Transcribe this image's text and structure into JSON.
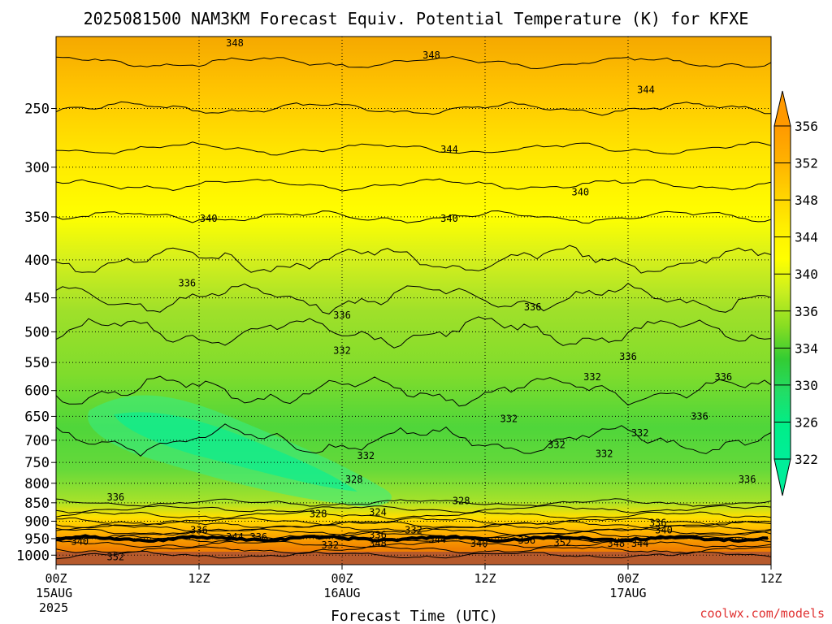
{
  "chart_data": {
    "type": "heatmap",
    "title": "2025081500 NAM3KM Forecast Equiv. Potential Temperature (K) for KFXE",
    "xlabel": "Forecast Time (UTC)",
    "ylabel": "",
    "watermark": "coolwx.com/models",
    "x_ticks": [
      {
        "hour": 0,
        "label": "00Z",
        "date": "15AUG",
        "year": "2025"
      },
      {
        "hour": 12,
        "label": "12Z",
        "date": "",
        "year": ""
      },
      {
        "hour": 24,
        "label": "00Z",
        "date": "16AUG",
        "year": ""
      },
      {
        "hour": 36,
        "label": "12Z",
        "date": "",
        "year": ""
      },
      {
        "hour": 48,
        "label": "00Z",
        "date": "17AUG",
        "year": ""
      },
      {
        "hour": 60,
        "label": "12Z",
        "date": "",
        "year": ""
      }
    ],
    "xlim": [
      0,
      60
    ],
    "y_ticks": [
      250,
      300,
      350,
      400,
      450,
      500,
      550,
      600,
      650,
      700,
      750,
      800,
      850,
      900,
      950,
      1000
    ],
    "ylim": [
      200,
      1030
    ],
    "y_scale": "log-pressure",
    "grid": true,
    "colorbar": {
      "labels": [
        356,
        352,
        348,
        344,
        340,
        336,
        334,
        330,
        326,
        322
      ],
      "colors": [
        "#ff9900",
        "#ffb000",
        "#ffd000",
        "#ffee00",
        "#ffff00",
        "#c8ee20",
        "#88dd22",
        "#33cc33",
        "#22dd66",
        "#00ee88",
        "#00ee99"
      ]
    },
    "profile": [
      {
        "p": 200,
        "theta_e": 349
      },
      {
        "p": 250,
        "theta_e": 346
      },
      {
        "p": 300,
        "theta_e": 343
      },
      {
        "p": 350,
        "theta_e": 340
      },
      {
        "p": 400,
        "theta_e": 338
      },
      {
        "p": 450,
        "theta_e": 336
      },
      {
        "p": 500,
        "theta_e": 334
      },
      {
        "p": 600,
        "theta_e": 332
      },
      {
        "p": 700,
        "theta_e": 330
      },
      {
        "p": 800,
        "theta_e": 328
      },
      {
        "p": 850,
        "theta_e": 330
      },
      {
        "p": 900,
        "theta_e": 336
      },
      {
        "p": 950,
        "theta_e": 346
      },
      {
        "p": 1000,
        "theta_e": 352
      }
    ],
    "contour_labels": [
      {
        "text": "348",
        "hour": 15.0,
        "p": 204
      },
      {
        "text": "348",
        "hour": 31.5,
        "p": 212
      },
      {
        "text": "344",
        "hour": 49.5,
        "p": 236
      },
      {
        "text": "344",
        "hour": 33.0,
        "p": 284
      },
      {
        "text": "340",
        "hour": 44.0,
        "p": 324
      },
      {
        "text": "340",
        "hour": 12.8,
        "p": 352
      },
      {
        "text": "340",
        "hour": 33.0,
        "p": 352
      },
      {
        "text": "336",
        "hour": 11.0,
        "p": 430
      },
      {
        "text": "336",
        "hour": 24.0,
        "p": 475
      },
      {
        "text": "336",
        "hour": 40.0,
        "p": 463
      },
      {
        "text": "332",
        "hour": 24.0,
        "p": 530
      },
      {
        "text": "336",
        "hour": 48.0,
        "p": 540
      },
      {
        "text": "332",
        "hour": 45.0,
        "p": 575
      },
      {
        "text": "336",
        "hour": 56.0,
        "p": 575
      },
      {
        "text": "332",
        "hour": 38.0,
        "p": 655
      },
      {
        "text": "336",
        "hour": 54.0,
        "p": 650
      },
      {
        "text": "332",
        "hour": 49.0,
        "p": 685
      },
      {
        "text": "332",
        "hour": 42.0,
        "p": 710
      },
      {
        "text": "332",
        "hour": 26.0,
        "p": 735
      },
      {
        "text": "332",
        "hour": 46.0,
        "p": 730
      },
      {
        "text": "328",
        "hour": 25.0,
        "p": 790
      },
      {
        "text": "336",
        "hour": 58.0,
        "p": 790
      },
      {
        "text": "336",
        "hour": 5.0,
        "p": 835
      },
      {
        "text": "328",
        "hour": 34.0,
        "p": 845
      },
      {
        "text": "324",
        "hour": 27.0,
        "p": 875
      },
      {
        "text": "328",
        "hour": 22.0,
        "p": 880
      },
      {
        "text": "336",
        "hour": 50.5,
        "p": 905
      },
      {
        "text": "336",
        "hour": 12.0,
        "p": 925
      },
      {
        "text": "340",
        "hour": 51.0,
        "p": 925
      },
      {
        "text": "332",
        "hour": 30.0,
        "p": 925
      },
      {
        "text": "336",
        "hour": 27.0,
        "p": 940
      },
      {
        "text": "344",
        "hour": 15.0,
        "p": 945
      },
      {
        "text": "336",
        "hour": 17.0,
        "p": 945
      },
      {
        "text": "344",
        "hour": 32.0,
        "p": 952
      },
      {
        "text": "336",
        "hour": 39.5,
        "p": 955
      },
      {
        "text": "340",
        "hour": 2.0,
        "p": 958
      },
      {
        "text": "352",
        "hour": 42.5,
        "p": 962
      },
      {
        "text": "348",
        "hour": 27.0,
        "p": 965
      },
      {
        "text": "340",
        "hour": 35.5,
        "p": 965
      },
      {
        "text": "348",
        "hour": 47.0,
        "p": 965
      },
      {
        "text": "344",
        "hour": 49.0,
        "p": 965
      },
      {
        "text": "332",
        "hour": 23.0,
        "p": 970
      },
      {
        "text": "352",
        "hour": 5.0,
        "p": 1005
      }
    ]
  }
}
